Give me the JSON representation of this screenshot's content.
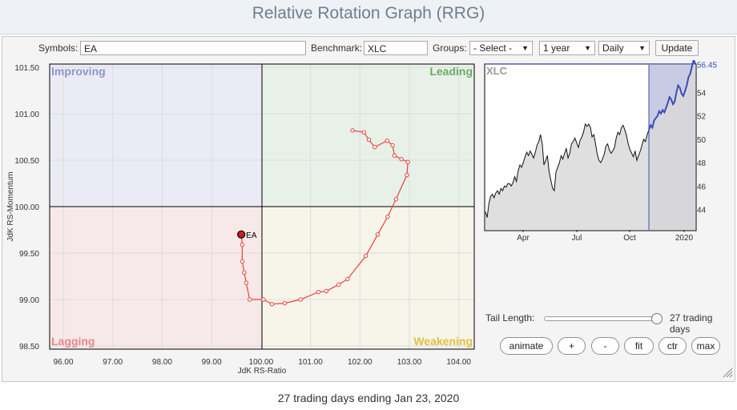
{
  "page": {
    "title": "Relative Rotation Graph (RRG)",
    "footer": "27 trading days ending Jan 23, 2020"
  },
  "controls": {
    "symbols_label": "Symbols:",
    "symbols_value": "EA",
    "benchmark_label": "Benchmark:",
    "benchmark_value": "XLC",
    "groups_label": "Groups:",
    "groups_value": "- Select -",
    "period_value": "1 year",
    "interval_value": "Daily",
    "update_label": "Update",
    "tail_label": "Tail Length:",
    "tail_value": "27 trading days",
    "tail_fraction": 0.95,
    "buttons": {
      "animate": "animate",
      "plus": "+",
      "minus": "-",
      "fit": "fit",
      "ctr": "ctr",
      "max": "max"
    }
  },
  "colors": {
    "improving": "#8a96c8",
    "leading": "#6aaa64",
    "lagging": "#e8868a",
    "weakening": "#e0c040",
    "tail": "#e8413c",
    "benchmark_line": "#3a4cb8"
  },
  "chart_data": [
    {
      "type": "scatter",
      "xlabel": "JdK RS-Ratio",
      "ylabel": "JdK RS-Momentum",
      "xlim": [
        95.7,
        104.2
      ],
      "ylim": [
        98.48,
        101.55
      ],
      "xticks": [
        "96.00",
        "97.00",
        "98.00",
        "99.00",
        "100.00",
        "101.00",
        "102.00",
        "103.00",
        "104.00"
      ],
      "yticks": [
        "98.50",
        "99.00",
        "99.50",
        "100.00",
        "100.50",
        "101.00",
        "101.50"
      ],
      "quadrants": {
        "improving": "Improving",
        "leading": "Leading",
        "lagging": "Lagging",
        "weakening": "Weakening"
      },
      "grid": true,
      "series": [
        {
          "name": "EA",
          "x": [
            101.85,
            102.08,
            102.18,
            102.3,
            102.55,
            102.66,
            102.7,
            102.84,
            102.97,
            102.95,
            102.73,
            102.56,
            102.36,
            102.12,
            101.75,
            101.57,
            101.32,
            101.16,
            100.8,
            100.48,
            100.22,
            100.05,
            99.77,
            99.7,
            99.66,
            99.62,
            99.62,
            99.6
          ],
          "y": [
            100.82,
            100.8,
            100.72,
            100.64,
            100.71,
            100.66,
            100.55,
            100.51,
            100.48,
            100.34,
            100.08,
            99.89,
            99.7,
            99.47,
            99.22,
            99.16,
            99.09,
            99.08,
            99.0,
            98.96,
            98.95,
            99.0,
            99.0,
            99.18,
            99.29,
            99.41,
            99.59,
            99.7
          ]
        }
      ]
    },
    {
      "type": "line",
      "title": "XLC",
      "xticks": [
        "Apr",
        "Jul",
        "Oct",
        "2020"
      ],
      "yticks": [
        "44",
        "46",
        "48",
        "50",
        "52",
        "54"
      ],
      "ylim": [
        43.0,
        57.3
      ],
      "last_value": "56.45",
      "series": [
        {
          "name": "XLC",
          "values": [
            43.8,
            43.3,
            44.5,
            45.1,
            45.3,
            45.0,
            45.4,
            45.6,
            45.3,
            45.8,
            45.6,
            46.0,
            45.9,
            46.2,
            46.2,
            46.0,
            46.3,
            46.8,
            46.4,
            47.3,
            47.8,
            47.6,
            48.0,
            48.5,
            48.9,
            48.6,
            49.0,
            48.7,
            48.4,
            48.9,
            49.5,
            49.8,
            50.4,
            49.6,
            47.8,
            48.2,
            48.6,
            47.2,
            46.5,
            45.8,
            45.6,
            47.2,
            47.6,
            48.0,
            48.6,
            48.3,
            48.8,
            49.2,
            48.4,
            48.8,
            49.6,
            49.8,
            50.1,
            49.7,
            49.3,
            49.9,
            50.2,
            50.6,
            51.3,
            51.1,
            51.3,
            51.0,
            50.2,
            50.4,
            49.6,
            48.7,
            48.2,
            48.0,
            48.3,
            48.7,
            49.4,
            49.6,
            49.1,
            48.8,
            49.0,
            49.3,
            50.1,
            50.6,
            50.4,
            51.0,
            51.2,
            50.8,
            50.3,
            49.6,
            49.1,
            48.8,
            48.5,
            49.0,
            48.2,
            48.6,
            49.0,
            49.5,
            50.0,
            49.8,
            50.4,
            50.8,
            51.2,
            51.0,
            51.6,
            51.8,
            52.0,
            52.4,
            52.2,
            52.5,
            52.3,
            52.7,
            53.1,
            53.6,
            53.4,
            53.0,
            53.2,
            54.0,
            54.6,
            54.4,
            53.9,
            53.7,
            54.1,
            54.6,
            55.3,
            55.6,
            56.2,
            56.8,
            56.45
          ]
        }
      ]
    }
  ]
}
